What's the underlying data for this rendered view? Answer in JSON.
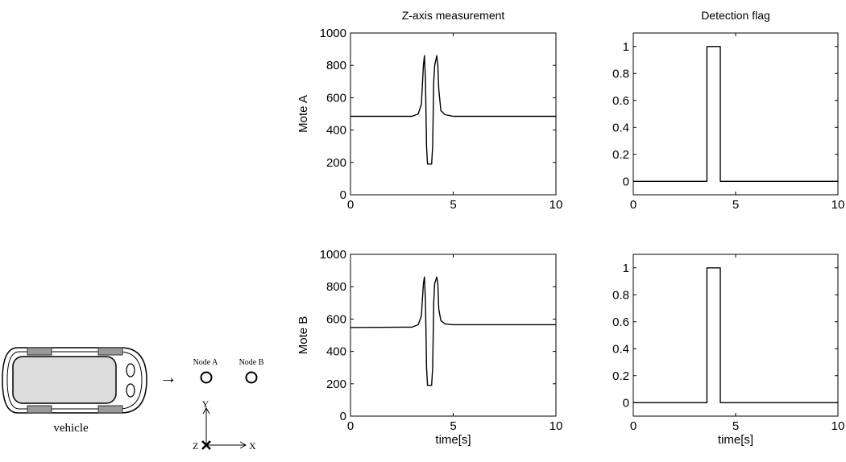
{
  "chart_data": [
    {
      "type": "line",
      "title": "Z-axis measurement",
      "ylabel": "Mote A",
      "xlabel": "",
      "xlim": [
        0,
        10
      ],
      "ylim": [
        0,
        1000
      ],
      "xticks": [
        0,
        5,
        10
      ],
      "yticks": [
        0,
        200,
        400,
        600,
        800,
        1000
      ],
      "series": [
        {
          "x": [
            0,
            3.0,
            3.3,
            3.45,
            3.55,
            3.6,
            3.65,
            3.7,
            3.75,
            3.8,
            3.95,
            4.0,
            4.05,
            4.1,
            4.2,
            4.25,
            4.3,
            4.4,
            4.6,
            5.0,
            10
          ],
          "y": [
            485,
            485,
            500,
            560,
            800,
            860,
            700,
            300,
            190,
            190,
            190,
            300,
            700,
            800,
            860,
            800,
            650,
            520,
            495,
            485,
            485
          ]
        }
      ]
    },
    {
      "type": "line",
      "title": "Detection flag",
      "ylabel": "",
      "xlabel": "",
      "xlim": [
        0,
        10
      ],
      "ylim": [
        -0.1,
        1.1
      ],
      "xticks": [
        0,
        5,
        10
      ],
      "yticks": [
        0,
        0.2,
        0.4,
        0.6,
        0.8,
        1
      ],
      "series": [
        {
          "x": [
            0,
            3.6,
            3.6,
            4.25,
            4.25,
            10
          ],
          "y": [
            0,
            0,
            1,
            1,
            0,
            0
          ]
        }
      ]
    },
    {
      "type": "line",
      "title": "",
      "ylabel": "Mote B",
      "xlabel": "time[s]",
      "xlim": [
        0,
        10
      ],
      "ylim": [
        0,
        1000
      ],
      "xticks": [
        0,
        5,
        10
      ],
      "yticks": [
        0,
        200,
        400,
        600,
        800,
        1000
      ],
      "series": [
        {
          "x": [
            0,
            3.0,
            3.3,
            3.45,
            3.55,
            3.6,
            3.65,
            3.7,
            3.75,
            3.8,
            3.95,
            4.0,
            4.05,
            4.1,
            4.2,
            4.25,
            4.3,
            4.4,
            4.6,
            5.0,
            10
          ],
          "y": [
            548,
            550,
            565,
            620,
            820,
            860,
            700,
            300,
            190,
            190,
            190,
            300,
            700,
            820,
            860,
            820,
            660,
            590,
            570,
            565,
            565
          ]
        }
      ]
    },
    {
      "type": "line",
      "title": "",
      "ylabel": "",
      "xlabel": "time[s]",
      "xlim": [
        0,
        10
      ],
      "ylim": [
        -0.1,
        1.1
      ],
      "xticks": [
        0,
        5,
        10
      ],
      "yticks": [
        0,
        0.2,
        0.4,
        0.6,
        0.8,
        1
      ],
      "series": [
        {
          "x": [
            0,
            3.6,
            3.6,
            4.25,
            4.25,
            10
          ],
          "y": [
            0,
            0,
            1,
            1,
            0,
            0
          ]
        }
      ]
    }
  ],
  "diagram": {
    "vehicle_label": "vehicle",
    "node_a_label": "Node A",
    "node_b_label": "Node B",
    "axis_y_label": "Y",
    "axis_z_label": "Z",
    "axis_x_label": "X",
    "arrow_symbol": "→"
  }
}
